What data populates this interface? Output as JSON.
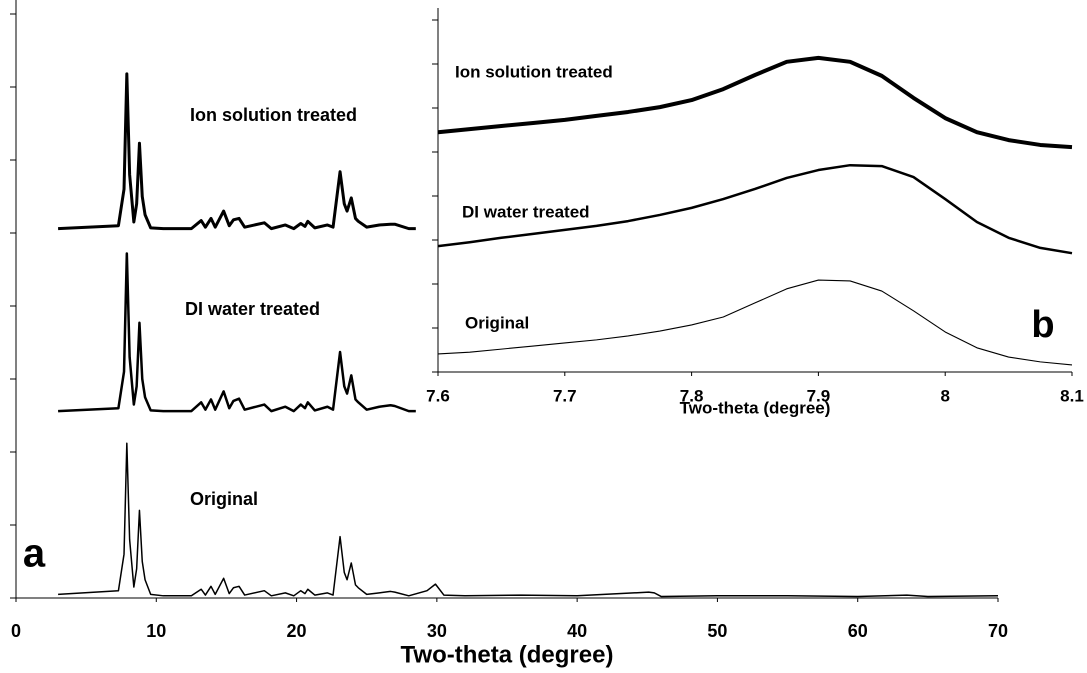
{
  "chart_data": [
    {
      "type": "line",
      "panel_label": "a",
      "x_label": "Two-theta (degree)",
      "xlim": [
        0,
        70
      ],
      "xticks": [
        0,
        10,
        20,
        30,
        40,
        50,
        60,
        70
      ],
      "ylim": [
        0,
        8
      ],
      "yticks": [
        0,
        1,
        2,
        3,
        4,
        5,
        6,
        7,
        8
      ],
      "series": [
        {
          "name": "Ion solution treated",
          "color": "#000000",
          "x": [
            3,
            7.3,
            7.7,
            7.9,
            8.1,
            8.4,
            8.6,
            8.8,
            9.0,
            9.2,
            9.6,
            10.5,
            12.5,
            13.2,
            13.5,
            13.9,
            14.2,
            14.8,
            15.2,
            15.5,
            15.9,
            16.3,
            17.7,
            18.2,
            19.2,
            19.8,
            20.3,
            20.6,
            20.8,
            21.3,
            22.2,
            22.6,
            23.1,
            23.4,
            23.6,
            23.9,
            24.2,
            24.4,
            25.0,
            25.9,
            26.7,
            27.0,
            28.0,
            28.5
          ],
          "values": [
            5.06,
            5.1,
            5.6,
            7.18,
            5.8,
            5.15,
            5.4,
            6.23,
            5.5,
            5.25,
            5.07,
            5.06,
            5.06,
            5.17,
            5.08,
            5.2,
            5.08,
            5.3,
            5.1,
            5.18,
            5.2,
            5.08,
            5.14,
            5.06,
            5.11,
            5.06,
            5.13,
            5.09,
            5.16,
            5.07,
            5.11,
            5.08,
            5.84,
            5.4,
            5.3,
            5.48,
            5.2,
            5.16,
            5.08,
            5.11,
            5.12,
            5.12,
            5.06,
            5.06
          ]
        },
        {
          "name": "DI water treated",
          "color": "#000000",
          "x": [
            3,
            7.3,
            7.7,
            7.9,
            8.1,
            8.4,
            8.6,
            8.8,
            9.0,
            9.2,
            9.6,
            10.5,
            12.5,
            13.2,
            13.5,
            13.9,
            14.2,
            14.8,
            15.2,
            15.5,
            15.9,
            16.3,
            17.7,
            18.2,
            19.2,
            19.8,
            20.3,
            20.6,
            20.8,
            21.3,
            22.2,
            22.6,
            23.1,
            23.4,
            23.6,
            23.9,
            24.2,
            24.4,
            25.0,
            25.9,
            26.7,
            27.0,
            28.0,
            28.5
          ],
          "values": [
            2.56,
            2.6,
            3.1,
            4.72,
            3.3,
            2.65,
            2.9,
            3.77,
            3.0,
            2.75,
            2.57,
            2.56,
            2.56,
            2.68,
            2.58,
            2.72,
            2.58,
            2.83,
            2.6,
            2.7,
            2.73,
            2.58,
            2.65,
            2.56,
            2.62,
            2.56,
            2.65,
            2.6,
            2.68,
            2.57,
            2.62,
            2.58,
            3.37,
            2.9,
            2.8,
            3.05,
            2.72,
            2.68,
            2.58,
            2.62,
            2.64,
            2.63,
            2.56,
            2.56
          ]
        },
        {
          "name": "Original",
          "color": "#000000",
          "x": [
            3,
            7.3,
            7.7,
            7.9,
            8.1,
            8.4,
            8.6,
            8.8,
            9.0,
            9.2,
            9.6,
            10.5,
            12.5,
            13.2,
            13.5,
            13.9,
            14.2,
            14.8,
            15.2,
            15.5,
            15.9,
            16.3,
            17.7,
            18.2,
            19.2,
            19.8,
            20.3,
            20.6,
            20.8,
            21.3,
            22.2,
            22.6,
            23.1,
            23.4,
            23.6,
            23.9,
            24.2,
            24.4,
            25.0,
            25.9,
            26.7,
            27.0,
            28.0,
            29.3,
            29.9,
            30.5,
            32,
            36,
            40,
            45.1,
            45.5,
            46,
            50,
            55,
            60,
            63.5,
            65,
            70
          ],
          "values": [
            0.05,
            0.1,
            0.6,
            2.12,
            0.8,
            0.15,
            0.4,
            1.2,
            0.5,
            0.25,
            0.05,
            0.03,
            0.03,
            0.12,
            0.04,
            0.16,
            0.05,
            0.27,
            0.06,
            0.14,
            0.16,
            0.04,
            0.1,
            0.03,
            0.07,
            0.03,
            0.1,
            0.06,
            0.12,
            0.04,
            0.07,
            0.04,
            0.84,
            0.35,
            0.25,
            0.48,
            0.18,
            0.14,
            0.05,
            0.07,
            0.09,
            0.08,
            0.03,
            0.1,
            0.19,
            0.04,
            0.03,
            0.04,
            0.03,
            0.08,
            0.07,
            0.02,
            0.03,
            0.03,
            0.02,
            0.04,
            0.02,
            0.03
          ]
        }
      ]
    },
    {
      "type": "line",
      "panel_label": "b",
      "x_label": "Two-theta (degree)",
      "xlim": [
        7.6,
        8.1
      ],
      "xticks": [
        7.6,
        7.7,
        7.8,
        7.9,
        {
          "value": 8,
          "label": "8"
        },
        8.1
      ],
      "ylim": [
        0,
        8
      ],
      "yticks": [
        0,
        1,
        2,
        3,
        4,
        5,
        6,
        7,
        8
      ],
      "series": [
        {
          "name": "Ion solution treated",
          "color": "#000000",
          "x": [
            7.6,
            7.625,
            7.65,
            7.675,
            7.7,
            7.725,
            7.75,
            7.775,
            7.8,
            7.825,
            7.85,
            7.875,
            7.9,
            7.925,
            7.95,
            7.975,
            8.0,
            8.025,
            8.05,
            8.075,
            8.1
          ],
          "values": [
            5.45,
            5.52,
            5.59,
            5.66,
            5.73,
            5.82,
            5.91,
            6.02,
            6.18,
            6.43,
            6.75,
            7.05,
            7.14,
            7.05,
            6.73,
            6.23,
            5.77,
            5.45,
            5.27,
            5.16,
            5.11
          ]
        },
        {
          "name": "DI water treated",
          "color": "#000000",
          "x": [
            7.6,
            7.625,
            7.65,
            7.675,
            7.7,
            7.725,
            7.75,
            7.775,
            7.8,
            7.825,
            7.85,
            7.875,
            7.9,
            7.925,
            7.95,
            7.975,
            8.0,
            8.025,
            8.05,
            8.075,
            8.1
          ],
          "values": [
            2.86,
            2.95,
            3.05,
            3.14,
            3.23,
            3.32,
            3.43,
            3.57,
            3.73,
            3.93,
            4.16,
            4.41,
            4.59,
            4.7,
            4.68,
            4.43,
            3.93,
            3.41,
            3.05,
            2.82,
            2.7
          ]
        },
        {
          "name": "Original",
          "color": "#000000",
          "x": [
            7.6,
            7.625,
            7.65,
            7.675,
            7.7,
            7.725,
            7.75,
            7.775,
            7.8,
            7.825,
            7.85,
            7.875,
            7.9,
            7.925,
            7.95,
            7.975,
            8.0,
            8.025,
            8.05,
            8.075,
            8.1
          ],
          "values": [
            0.41,
            0.45,
            0.52,
            0.59,
            0.66,
            0.73,
            0.82,
            0.93,
            1.07,
            1.25,
            1.57,
            1.89,
            2.09,
            2.07,
            1.84,
            1.39,
            0.91,
            0.55,
            0.34,
            0.23,
            0.16
          ]
        }
      ]
    }
  ]
}
